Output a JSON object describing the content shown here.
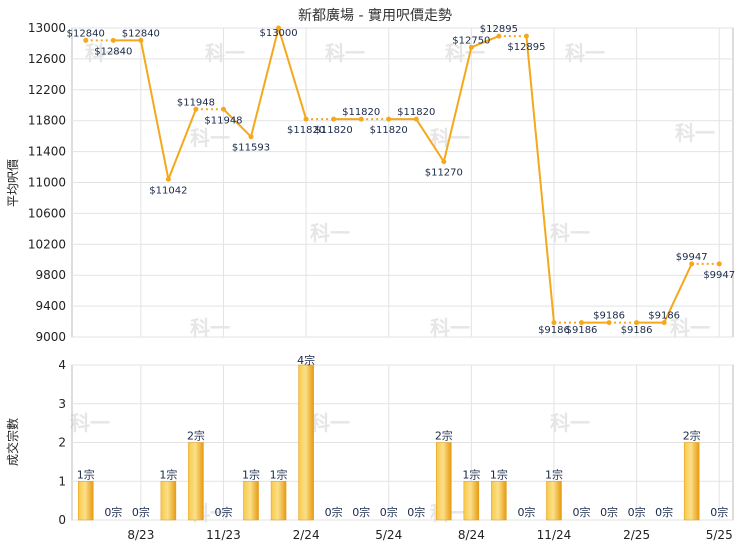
{
  "chart_data": [
    {
      "type": "line",
      "title": "新都廣場 - 實用呎價走勢",
      "ylabel": "平均呎價",
      "ylim": [
        9000,
        13000
      ],
      "yticks": [
        9000,
        9400,
        9800,
        10200,
        10600,
        11000,
        11400,
        11800,
        12200,
        12600,
        13000
      ],
      "grid": true,
      "xticklabels": [
        "8/23",
        "11/23",
        "2/24",
        "5/24",
        "8/24",
        "11/24",
        "2/25",
        "5/25"
      ],
      "values": [
        12840,
        12840,
        12840,
        11042,
        11948,
        11948,
        11593,
        13000,
        11820,
        11820,
        11820,
        11820,
        11820,
        11270,
        12750,
        12895,
        12895,
        9186,
        9186,
        9186,
        9186,
        9186,
        9947,
        9947
      ],
      "labels": [
        "$12840",
        "$12840",
        "$12840",
        "$11042",
        "$11948",
        "$11948",
        "$11593",
        "$13000",
        "$11820",
        "$11820",
        "$11820",
        "$11820",
        "$11820",
        "$11270",
        "$12750",
        "$12895",
        "$12895",
        "$9186",
        "$9186",
        "$9186",
        "$9186",
        "$9186",
        "$9947",
        "$9947"
      ],
      "carried": [
        false,
        true,
        false,
        false,
        false,
        true,
        false,
        false,
        false,
        true,
        false,
        true,
        false,
        false,
        false,
        false,
        true,
        false,
        true,
        false,
        true,
        false,
        false,
        true
      ],
      "line_color": "#f5a81c"
    },
    {
      "type": "bar",
      "ylabel": "成交宗數",
      "ylim": [
        0,
        4
      ],
      "yticks": [
        0,
        1,
        2,
        3,
        4
      ],
      "grid": true,
      "xticklabels": [
        "8/23",
        "11/23",
        "2/24",
        "5/24",
        "8/24",
        "11/24",
        "2/25",
        "5/25"
      ],
      "values": [
        1,
        0,
        0,
        1,
        2,
        0,
        1,
        1,
        4,
        0,
        0,
        0,
        0,
        2,
        1,
        1,
        0,
        1,
        0,
        0,
        0,
        0,
        2,
        0
      ],
      "labels": [
        "1宗",
        "0宗",
        "0宗",
        "1宗",
        "2宗",
        "0宗",
        "1宗",
        "1宗",
        "4宗",
        "0宗",
        "0宗",
        "0宗",
        "0宗",
        "2宗",
        "1宗",
        "1宗",
        "0宗",
        "1宗",
        "0宗",
        "0宗",
        "0宗",
        "0宗",
        "2宗",
        "0宗"
      ],
      "bar_color": "#f2b01e"
    }
  ],
  "watermark": "科一"
}
